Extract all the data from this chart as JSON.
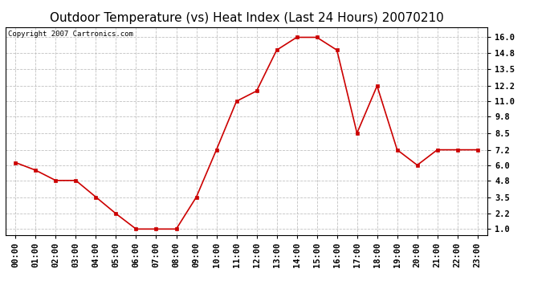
{
  "title": "Outdoor Temperature (vs) Heat Index (Last 24 Hours) 20070210",
  "copyright": "Copyright 2007 Cartronics.com",
  "x_labels": [
    "00:00",
    "01:00",
    "02:00",
    "03:00",
    "04:00",
    "05:00",
    "06:00",
    "07:00",
    "08:00",
    "09:00",
    "10:00",
    "11:00",
    "12:00",
    "13:00",
    "14:00",
    "15:00",
    "16:00",
    "17:00",
    "18:00",
    "19:00",
    "20:00",
    "21:00",
    "22:00",
    "23:00"
  ],
  "y_values": [
    6.2,
    5.6,
    4.8,
    4.8,
    3.5,
    2.2,
    1.0,
    1.0,
    1.0,
    3.5,
    7.2,
    11.0,
    11.8,
    15.0,
    16.0,
    16.0,
    15.0,
    8.5,
    12.2,
    7.2,
    6.0,
    7.2,
    7.2,
    7.2
  ],
  "line_color": "#cc0000",
  "marker": "s",
  "marker_size": 3,
  "ylim_min": 0.55,
  "ylim_max": 16.8,
  "yticks": [
    1.0,
    2.2,
    3.5,
    4.8,
    6.0,
    7.2,
    8.5,
    9.8,
    11.0,
    12.2,
    13.5,
    14.8,
    16.0
  ],
  "bg_color": "#ffffff",
  "grid_color": "#bbbbbb",
  "title_fontsize": 11,
  "axis_label_fontsize": 7.5,
  "copyright_fontsize": 6.5
}
